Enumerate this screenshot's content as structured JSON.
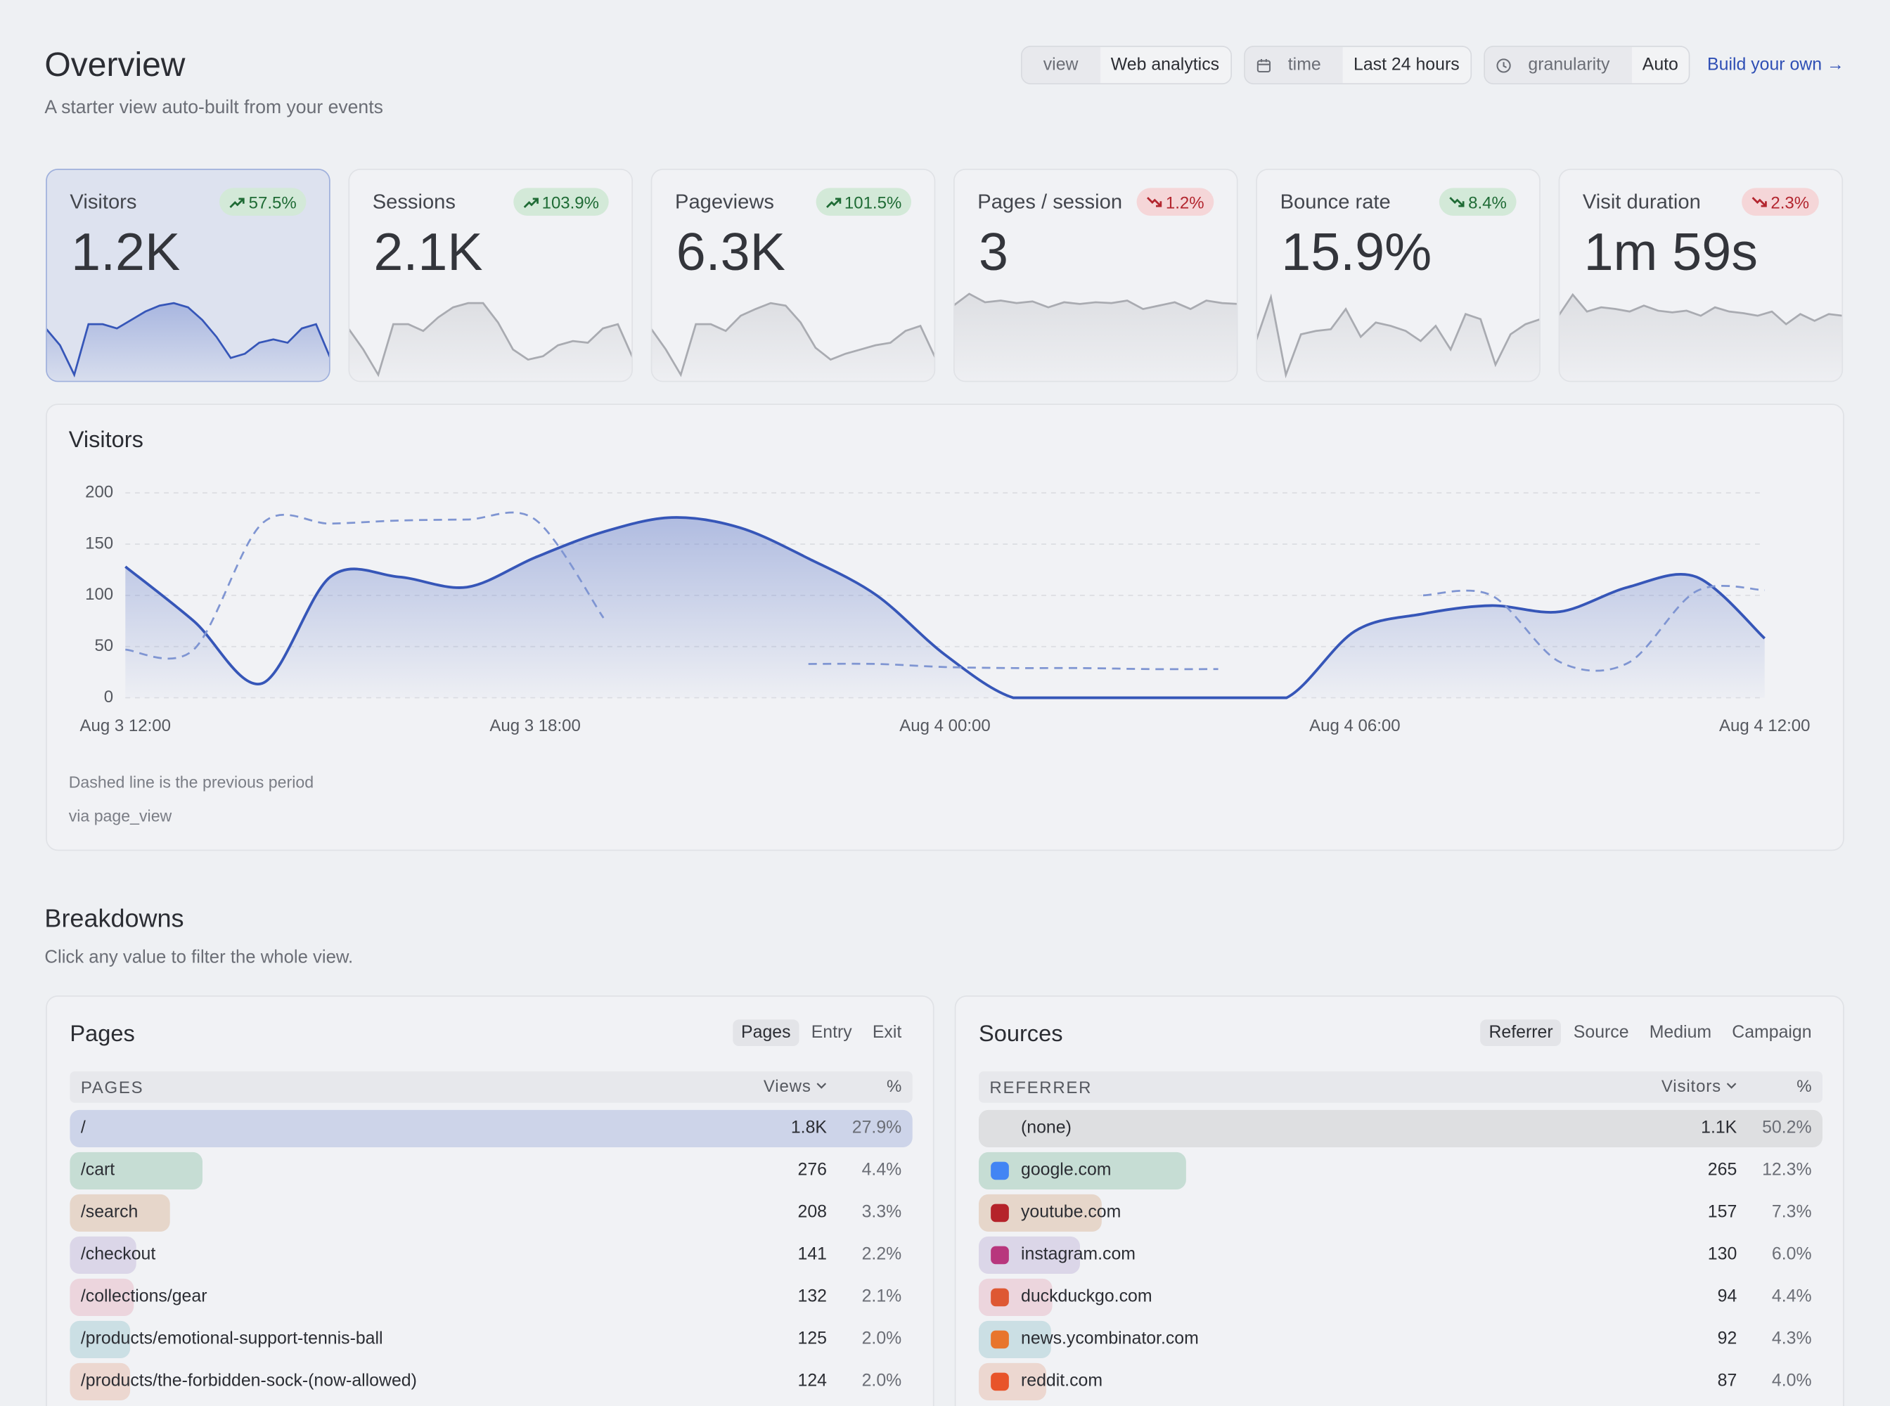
{
  "header": {
    "title": "Overview",
    "subtitle": "A starter view auto-built from your events"
  },
  "controls": [
    {
      "label": "view",
      "value": "Web analytics",
      "icon": null
    },
    {
      "label": "time",
      "value": "Last 24 hours",
      "icon": "calendar"
    },
    {
      "label": "granularity",
      "value": "Auto",
      "icon": "clock"
    }
  ],
  "build_link": "Build your own →",
  "kpis": [
    {
      "label": "Visitors",
      "value": "1.2K",
      "delta": "57.5%",
      "direction": "up",
      "tone": "good",
      "selected": true,
      "sparkline": [
        55,
        35,
        0,
        60,
        60,
        55,
        65,
        75,
        82,
        85,
        80,
        65,
        45,
        20,
        25,
        38,
        42,
        38,
        55,
        60,
        20
      ]
    },
    {
      "label": "Sessions",
      "value": "2.1K",
      "delta": "103.9%",
      "direction": "up",
      "tone": "good",
      "selected": false,
      "sparkline": [
        55,
        30,
        0,
        60,
        60,
        52,
        68,
        80,
        85,
        85,
        62,
        30,
        18,
        22,
        35,
        40,
        38,
        55,
        60,
        20
      ]
    },
    {
      "label": "Pageviews",
      "value": "6.3K",
      "delta": "101.5%",
      "direction": "up",
      "tone": "good",
      "selected": false,
      "sparkline": [
        55,
        30,
        0,
        60,
        60,
        52,
        70,
        78,
        85,
        82,
        62,
        32,
        18,
        25,
        30,
        35,
        38,
        52,
        58,
        20
      ]
    },
    {
      "label": "Pages / session",
      "value": "3",
      "delta": "1.2%",
      "direction": "down",
      "tone": "bad",
      "selected": false,
      "sparkline": [
        82,
        96,
        86,
        88,
        85,
        87,
        80,
        86,
        84,
        86,
        85,
        88,
        78,
        82,
        86,
        78,
        88,
        85,
        84
      ]
    },
    {
      "label": "Bounce rate",
      "value": "15.9%",
      "delta": "8.4%",
      "direction": "down",
      "tone": "good",
      "selected": false,
      "sparkline": [
        40,
        92,
        0,
        48,
        52,
        54,
        78,
        45,
        62,
        58,
        52,
        40,
        58,
        30,
        72,
        66,
        12,
        48,
        60,
        66
      ]
    },
    {
      "label": "Visit duration",
      "value": "1m 59s",
      "delta": "2.3%",
      "direction": "down",
      "tone": "bad",
      "selected": false,
      "sparkline": [
        70,
        95,
        75,
        80,
        78,
        75,
        82,
        76,
        74,
        76,
        70,
        80,
        75,
        73,
        70,
        75,
        60,
        72,
        64,
        72,
        70
      ]
    }
  ],
  "chart_data": {
    "type": "line",
    "title": "Visitors",
    "x": [
      0,
      1,
      2,
      3,
      4,
      5,
      6,
      7,
      8,
      9,
      10,
      11,
      12,
      13,
      14,
      15,
      16,
      17,
      18,
      19,
      20,
      21,
      22,
      23,
      24
    ],
    "xlim": [
      0,
      24
    ],
    "xticks": [
      {
        "value": 0,
        "label": "Aug 3 12:00"
      },
      {
        "value": 6,
        "label": "Aug 3 18:00"
      },
      {
        "value": 12,
        "label": "Aug 4 00:00"
      },
      {
        "value": 18,
        "label": "Aug 4 06:00"
      },
      {
        "value": 24,
        "label": "Aug 4 12:00"
      }
    ],
    "ylim": [
      0,
      200
    ],
    "yticks": [
      0,
      50,
      100,
      150,
      200
    ],
    "grid": true,
    "series": [
      {
        "style": "solid",
        "area": true,
        "color": "#3656b8",
        "values": [
          128,
          75,
          14,
          118,
          118,
          108,
          137,
          162,
          176,
          166,
          136,
          100,
          42,
          0,
          0,
          0,
          0,
          0,
          65,
          82,
          90,
          84,
          108,
          118,
          58
        ]
      },
      {
        "style": "dashed",
        "area": false,
        "color": "#7f95d2",
        "values": [
          47,
          47,
          170,
          170,
          173,
          174,
          174,
          78,
          null,
          null,
          33,
          33,
          30,
          29,
          29,
          28,
          28,
          null,
          null,
          100,
          100,
          35,
          34,
          104,
          105
        ]
      }
    ],
    "notes": [
      "Dashed line is the previous period",
      "via page_view"
    ]
  },
  "breakdowns": {
    "title": "Breakdowns",
    "subtitle": "Click any value to filter the whole view.",
    "panels": [
      {
        "title": "Pages",
        "tabs": [
          "Pages",
          "Entry",
          "Exit"
        ],
        "active_tab": 0,
        "columns": [
          "PAGES",
          "Views",
          "%"
        ],
        "rows": [
          {
            "name": "/",
            "value": 1800,
            "value_label": "1.8K",
            "share": 27.9,
            "share_label": "27.9%",
            "color": "#cdd4e9",
            "icon_color": null
          },
          {
            "name": "/cart",
            "value": 276,
            "share": 4.4,
            "share_label": "4.4%",
            "color": "#c6ddd4",
            "icon_color": null
          },
          {
            "name": "/search",
            "value": 208,
            "share": 3.3,
            "share_label": "3.3%",
            "color": "#e6d6ca",
            "icon_color": null
          },
          {
            "name": "/checkout",
            "value": 141,
            "share": 2.2,
            "share_label": "2.2%",
            "color": "#dbd6e8",
            "icon_color": null
          },
          {
            "name": "/collections/gear",
            "value": 132,
            "share": 2.1,
            "share_label": "2.1%",
            "color": "#ecd5dd",
            "icon_color": null
          },
          {
            "name": "/products/emotional-support-tennis-ball",
            "value": 125,
            "share": 2.0,
            "share_label": "2.0%",
            "color": "#cbdfe4",
            "icon_color": null
          },
          {
            "name": "/products/the-forbidden-sock-(now-allowed)",
            "value": 124,
            "share": 2.0,
            "share_label": "2.0%",
            "color": "#ecd7d0",
            "icon_color": null
          }
        ]
      },
      {
        "title": "Sources",
        "tabs": [
          "Referrer",
          "Source",
          "Medium",
          "Campaign"
        ],
        "active_tab": 0,
        "columns": [
          "REFERRER",
          "Visitors",
          "%"
        ],
        "rows": [
          {
            "name": "(none)",
            "value": 1100,
            "value_label": "1.1K",
            "share": 50.2,
            "share_label": "50.2%",
            "color": "#dedfe1",
            "icon_color": null
          },
          {
            "name": "google.com",
            "value": 265,
            "share": 12.3,
            "share_label": "12.3%",
            "color": "#c6ddd4",
            "icon_color": "#4285f4"
          },
          {
            "name": "youtube.com",
            "value": 157,
            "share": 7.3,
            "share_label": "7.3%",
            "color": "#e6d6ca",
            "icon_color": "#b5232a"
          },
          {
            "name": "instagram.com",
            "value": 130,
            "share": 6.0,
            "share_label": "6.0%",
            "color": "#dbd6e8",
            "icon_color": "#b8367d"
          },
          {
            "name": "duckduckgo.com",
            "value": 94,
            "share": 4.4,
            "share_label": "4.4%",
            "color": "#ecd5dd",
            "icon_color": "#de5833"
          },
          {
            "name": "news.ycombinator.com",
            "value": 92,
            "share": 4.3,
            "share_label": "4.3%",
            "color": "#cbdfe4",
            "icon_color": "#e8752c"
          },
          {
            "name": "reddit.com",
            "value": 87,
            "share": 4.0,
            "share_label": "4.0%",
            "color": "#ecd7d0",
            "icon_color": "#e8542a"
          }
        ]
      }
    ]
  }
}
